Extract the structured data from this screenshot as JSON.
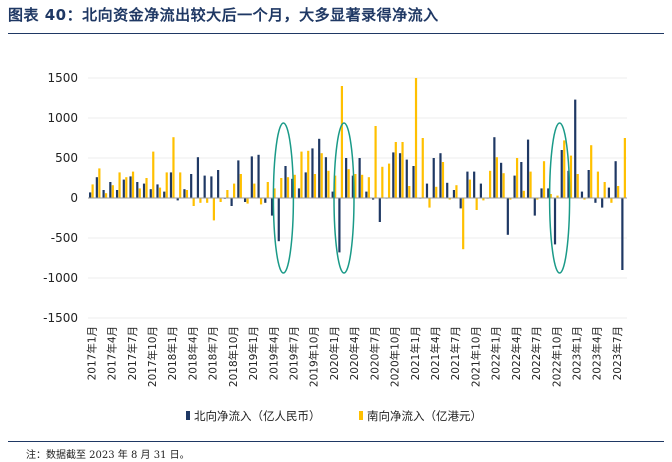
{
  "title": "图表 40：北向资金净流出较大后一个月，大多显著录得净流入",
  "note": "注：数据截至 2023 年 8 月 31 日。",
  "colors": {
    "north": "#1f3864",
    "south": "#ffc000",
    "highlight": "#1a9a88",
    "axis": "#9a9a9a"
  },
  "chart_data": {
    "type": "bar",
    "title": "北向资金净流出较大后一个月，大多显著录得净流入",
    "xlabel": "",
    "ylabel": "",
    "ylim": [
      -1500,
      1500
    ],
    "yticks": [
      -1500,
      -1000,
      -500,
      0,
      500,
      1000,
      1500
    ],
    "tick_labels": [
      "2017年1月",
      "2017年4月",
      "2017年7月",
      "2017年10月",
      "2018年1月",
      "2018年4月",
      "2018年7月",
      "2018年10月",
      "2019年1月",
      "2019年4月",
      "2019年7月",
      "2019年10月",
      "2020年1月",
      "2020年4月",
      "2020年7月",
      "2020年10月",
      "2021年1月",
      "2021年4月",
      "2021年7月",
      "2021年10月",
      "2022年1月",
      "2022年4月",
      "2022年7月",
      "2022年10月",
      "2023年1月",
      "2023年4月",
      "2023年7月"
    ],
    "categories": [
      "2017-01",
      "2017-02",
      "2017-03",
      "2017-04",
      "2017-05",
      "2017-06",
      "2017-07",
      "2017-08",
      "2017-09",
      "2017-10",
      "2017-11",
      "2017-12",
      "2018-01",
      "2018-02",
      "2018-03",
      "2018-04",
      "2018-05",
      "2018-06",
      "2018-07",
      "2018-08",
      "2018-09",
      "2018-10",
      "2018-11",
      "2018-12",
      "2019-01",
      "2019-02",
      "2019-03",
      "2019-04",
      "2019-05",
      "2019-06",
      "2019-07",
      "2019-08",
      "2019-09",
      "2019-10",
      "2019-11",
      "2019-12",
      "2020-01",
      "2020-02",
      "2020-03",
      "2020-04",
      "2020-05",
      "2020-06",
      "2020-07",
      "2020-08",
      "2020-09",
      "2020-10",
      "2020-11",
      "2020-12",
      "2021-01",
      "2021-02",
      "2021-03",
      "2021-04",
      "2021-05",
      "2021-06",
      "2021-07",
      "2021-08",
      "2021-09",
      "2021-10",
      "2021-11",
      "2021-12",
      "2022-01",
      "2022-02",
      "2022-03",
      "2022-04",
      "2022-05",
      "2022-06",
      "2022-07",
      "2022-08",
      "2022-09",
      "2022-10",
      "2022-11",
      "2022-12",
      "2023-01",
      "2023-02",
      "2023-03",
      "2023-04",
      "2023-05",
      "2023-06",
      "2023-07",
      "2023-08"
    ],
    "series": [
      {
        "name": "北向净流入（亿人民币）",
        "values": [
          70,
          260,
          100,
          200,
          100,
          230,
          270,
          200,
          180,
          110,
          170,
          80,
          320,
          -30,
          110,
          300,
          510,
          280,
          270,
          350,
          -10,
          -100,
          470,
          -50,
          520,
          540,
          -60,
          -220,
          -540,
          400,
          240,
          120,
          320,
          620,
          740,
          510,
          80,
          -680,
          500,
          280,
          500,
          80,
          -20,
          -300,
          0,
          570,
          560,
          480,
          400,
          0,
          180,
          500,
          560,
          190,
          100,
          -130,
          330,
          330,
          180,
          0,
          760,
          440,
          -460,
          280,
          450,
          730,
          -220,
          120,
          120,
          -580,
          600,
          340,
          1230,
          80,
          350,
          -60,
          -120,
          130,
          460,
          -900
        ]
      },
      {
        "name": "南向净流入（亿港元）",
        "values": [
          170,
          370,
          60,
          160,
          320,
          260,
          330,
          120,
          250,
          580,
          130,
          320,
          760,
          320,
          100,
          -100,
          -60,
          -60,
          -280,
          -50,
          100,
          180,
          300,
          -70,
          180,
          -80,
          200,
          120,
          250,
          260,
          290,
          580,
          590,
          300,
          560,
          340,
          280,
          1400,
          360,
          300,
          290,
          260,
          900,
          390,
          430,
          700,
          700,
          150,
          1500,
          750,
          -120,
          140,
          450,
          -20,
          160,
          -640,
          230,
          -150,
          -30,
          340,
          510,
          310,
          -20,
          500,
          90,
          330,
          -20,
          460,
          50,
          30,
          720,
          530,
          300,
          -20,
          660,
          330,
          200,
          -60,
          150,
          750
        ]
      }
    ],
    "highlights": [
      "2019-05 to 2019-06",
      "2020-02 to 2020-03",
      "2022-10 to 2022-11"
    ],
    "legend": "bottom"
  }
}
